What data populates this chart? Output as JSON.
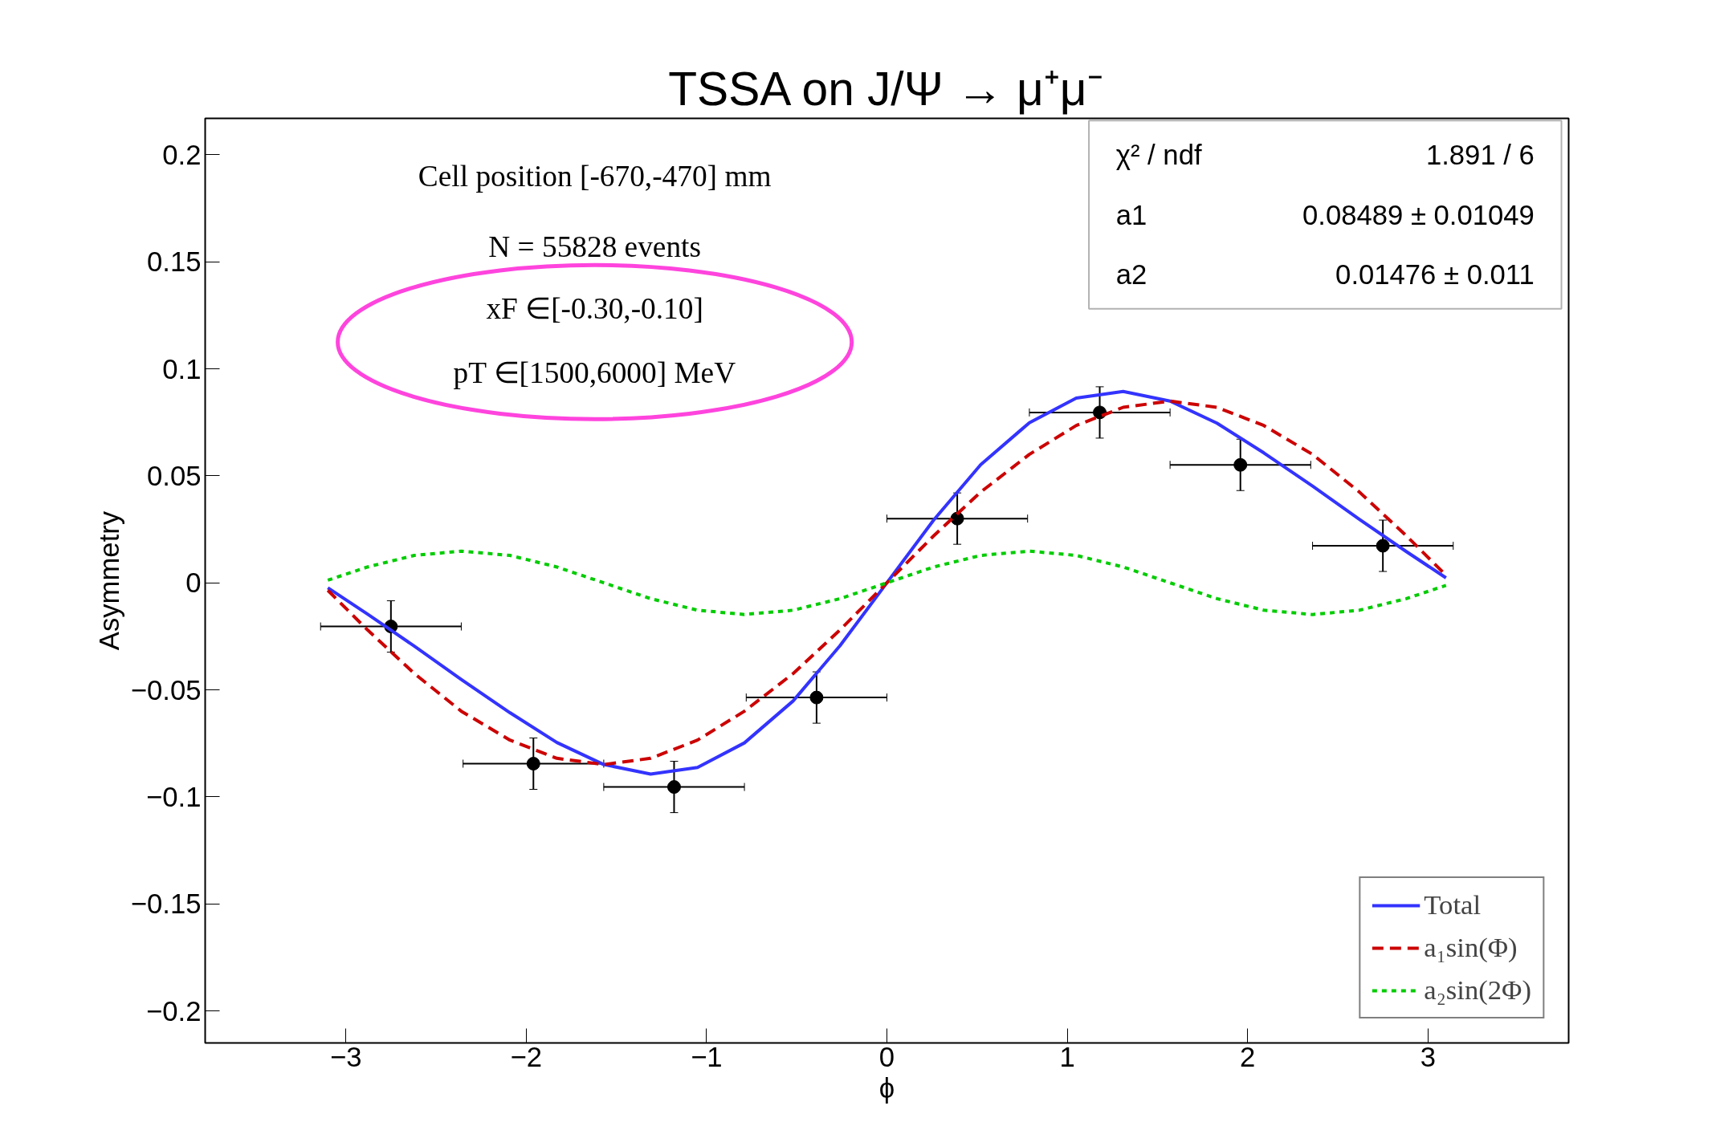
{
  "chart_data": {
    "type": "scatter",
    "title": "TSSA on J/Ψ → μ⁺μ⁻",
    "xlabel": "ϕ",
    "ylabel": "Asymmetry",
    "xlim": [
      -3.78,
      3.78
    ],
    "ylim": [
      -0.215,
      0.217
    ],
    "xticks": [
      {
        "value": -3,
        "label": "−3"
      },
      {
        "value": -2,
        "label": "−2"
      },
      {
        "value": -1,
        "label": "−1"
      },
      0,
      1,
      2,
      3
    ],
    "yticks": [
      {
        "value": -0.2,
        "label": "−0.2"
      },
      {
        "value": -0.15,
        "label": "−0.15"
      },
      {
        "value": -0.1,
        "label": "−0.1"
      },
      {
        "value": -0.05,
        "label": "−0.05"
      },
      0,
      0.05,
      0.1,
      0.15,
      0.2
    ],
    "grid": false,
    "legend": "bottom right",
    "series": [
      {
        "color": "#000000",
        "marker": "circle",
        "x": [
          -2.75,
          -1.96,
          -1.18,
          -0.39,
          0.39,
          1.18,
          1.96,
          2.75
        ],
        "values": [
          -0.0204,
          -0.0845,
          -0.0954,
          -0.0536,
          0.03,
          0.0796,
          0.0551,
          0.0173
        ],
        "errors": [
          0.012,
          0.012,
          0.012,
          0.012,
          0.012,
          0.012,
          0.012,
          0.012
        ],
        "xerrors": [
          0.39,
          0.39,
          0.39,
          0.39,
          0.39,
          0.39,
          0.39,
          0.39
        ]
      },
      {
        "type": "line",
        "name": "Total",
        "color": "#3333ff",
        "line_style": "solid",
        "x": [
          -3.1,
          -2.88,
          -2.62,
          -2.36,
          -2.09,
          -1.83,
          -1.57,
          -1.31,
          -1.05,
          -0.79,
          -0.52,
          -0.26,
          0,
          0.26,
          0.52,
          0.79,
          1.05,
          1.31,
          1.57,
          1.83,
          2.09,
          2.36,
          2.62,
          2.88,
          3.1
        ],
        "values": [
          -0.0023,
          -0.0146,
          -0.0296,
          -0.0452,
          -0.0607,
          -0.0746,
          -0.0849,
          -0.0894,
          -0.0863,
          -0.0748,
          -0.0552,
          -0.0294,
          0,
          0.0294,
          0.0552,
          0.0748,
          0.0863,
          0.0894,
          0.0849,
          0.0746,
          0.0607,
          0.0452,
          0.0296,
          0.0146,
          0.0023
        ]
      },
      {
        "type": "line",
        "name": "a₁sin(Φ)",
        "color": "#cc0000",
        "line_style": "dashed",
        "x": [
          -3.1,
          -2.88,
          -2.62,
          -2.36,
          -2.09,
          -1.83,
          -1.57,
          -1.31,
          -1.05,
          -0.79,
          -0.52,
          -0.26,
          0,
          0.26,
          0.52,
          0.79,
          1.05,
          1.31,
          1.57,
          1.83,
          2.09,
          2.36,
          2.62,
          2.88,
          3.1
        ],
        "values": [
          -0.0035,
          -0.022,
          -0.0424,
          -0.06,
          -0.0735,
          -0.082,
          -0.0849,
          -0.082,
          -0.0735,
          -0.06,
          -0.0424,
          -0.022,
          0,
          0.022,
          0.0424,
          0.06,
          0.0735,
          0.082,
          0.0849,
          0.082,
          0.0735,
          0.06,
          0.0424,
          0.022,
          0.0035
        ]
      },
      {
        "type": "line",
        "name": "a₂sin(2Φ)",
        "color": "#00cc00",
        "line_style": "dotted",
        "x": [
          -3.1,
          -2.88,
          -2.62,
          -2.36,
          -2.09,
          -1.83,
          -1.57,
          -1.31,
          -1.05,
          -0.79,
          -0.52,
          -0.26,
          0,
          0.26,
          0.52,
          0.79,
          1.05,
          1.31,
          1.57,
          1.83,
          2.09,
          2.36,
          2.62,
          2.88,
          3.1
        ],
        "values": [
          0.0012,
          0.0074,
          0.0128,
          0.0148,
          0.0128,
          0.0074,
          0,
          -0.0074,
          -0.0128,
          -0.0148,
          -0.0128,
          -0.0074,
          0,
          0.0074,
          0.0128,
          0.0148,
          0.0128,
          0.0074,
          0,
          -0.0074,
          -0.0128,
          -0.0148,
          -0.0128,
          -0.0074,
          -0.0012
        ]
      }
    ],
    "annotations": [
      "Cell position [-670,-470] mm",
      "N = 55828 events",
      "xF ∈[-0.30,-0.10]",
      "pT ∈[1500,6000] MeV",
      "χ² / ndf",
      "1.891 / 6",
      "a1",
      "0.08489 ± 0.01049",
      "a2",
      "0.01476 ± 0.011"
    ]
  }
}
